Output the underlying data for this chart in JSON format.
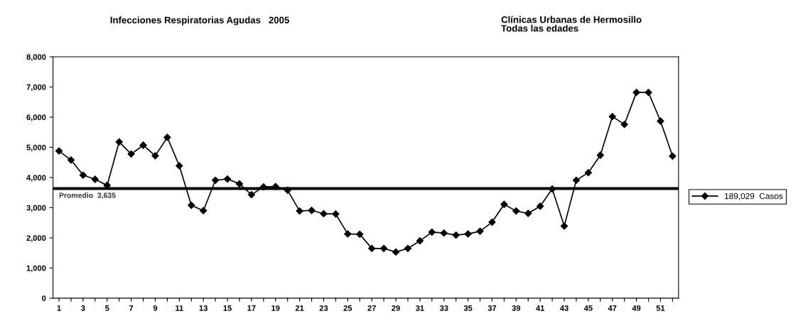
{
  "chart_data": {
    "type": "line",
    "title": "Infecciones Respiratorias Agudas   2005",
    "subtitle": "Clínicas Urbanas de Hermosillo\nTodas las edades",
    "categories": [
      "1",
      null,
      "3",
      null,
      "5",
      null,
      "7",
      null,
      "9",
      null,
      "11",
      null,
      "13",
      null,
      "15",
      null,
      "17",
      null,
      "19",
      null,
      "21",
      null,
      "23",
      null,
      "25",
      null,
      "27",
      null,
      "29",
      null,
      "31",
      null,
      "33",
      null,
      "35",
      null,
      "37",
      null,
      "39",
      null,
      "41",
      null,
      "43",
      null,
      "45",
      null,
      "47",
      null,
      "49",
      null,
      "51",
      null
    ],
    "series": [
      {
        "name": "189,029  Casos",
        "color": "#000000",
        "values": [
          4880,
          4580,
          4080,
          3940,
          3740,
          5180,
          4780,
          5070,
          4720,
          5330,
          4390,
          3080,
          2900,
          3910,
          3950,
          3790,
          3430,
          3690,
          3700,
          3580,
          2890,
          2910,
          2800,
          2790,
          2130,
          2120,
          1650,
          1650,
          1530,
          1650,
          1900,
          2190,
          2160,
          2090,
          2130,
          2220,
          2520,
          3110,
          2890,
          2810,
          3050,
          3620,
          2390,
          3910,
          4160,
          4740,
          6020,
          5760,
          6820,
          6820,
          5870,
          4710
        ]
      }
    ],
    "ylim": [
      0,
      8000
    ],
    "yticks": [
      {
        "value": 0,
        "label": "0"
      },
      {
        "value": 1000,
        "label": "1,000"
      },
      {
        "value": 2000,
        "label": "2,000"
      },
      {
        "value": 3000,
        "label": "3,000"
      },
      {
        "value": 4000,
        "label": "4,000"
      },
      {
        "value": 5000,
        "label": "5,000"
      },
      {
        "value": 6000,
        "label": "6,000"
      },
      {
        "value": 7000,
        "label": "7,000"
      },
      {
        "value": 8000,
        "label": "8,000"
      }
    ],
    "ref_lines": [
      {
        "axis": "y",
        "value": 3635,
        "label": "Promedio  3,635",
        "color": "#000000"
      }
    ],
    "marker": "diamond",
    "line_style": "solid",
    "grid": false,
    "legend": "right"
  }
}
